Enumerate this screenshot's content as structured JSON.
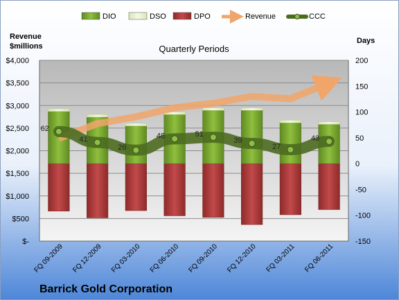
{
  "chart_data": {
    "type": "bar",
    "title": "Quarterly Periods",
    "company": "Barrick Gold Corporation",
    "ylabel_left": [
      "Revenue",
      "$millions"
    ],
    "ylabel_right": "Days",
    "categories": [
      "FQ 09-2009",
      "FQ 12-2009",
      "FQ 03-2010",
      "FQ 06-2010",
      "FQ 09-2010",
      "FQ 12-2010",
      "FQ 03-2011",
      "FQ 06-2011"
    ],
    "left_ticks": [
      "$-",
      "$500",
      "$1,000",
      "$1,500",
      "$2,000",
      "$2,500",
      "$3,000",
      "$3,500",
      "$4,000"
    ],
    "right_ticks": [
      "-150",
      "-100",
      "-50",
      "0",
      "50",
      "100",
      "150",
      "200"
    ],
    "ylim_left": [
      0,
      4000
    ],
    "ylim_right": [
      -150,
      200
    ],
    "series": [
      {
        "name": "DIO",
        "color": "#7aa32e",
        "values": [
          101,
          90,
          73,
          95,
          103,
          103,
          79,
          76
        ]
      },
      {
        "name": "DSO",
        "color": "#e6f0c8",
        "values": [
          5,
          5,
          5,
          5,
          5,
          5,
          5,
          5
        ]
      },
      {
        "name": "DPO",
        "color": "#b03a3a",
        "values": [
          -92,
          -105,
          -91,
          -101,
          -104,
          -118,
          -99,
          -89
        ]
      },
      {
        "name": "Revenue",
        "color": "#f0a66a",
        "values": [
          2270,
          2600,
          2750,
          2950,
          3050,
          3200,
          3150,
          3500
        ]
      },
      {
        "name": "CCC",
        "color": "#4d6b20",
        "values": [
          62,
          41,
          26,
          48,
          51,
          39,
          27,
          43
        ]
      }
    ],
    "ccc_labels": [
      "62",
      "41",
      "26",
      "48",
      "51",
      "39",
      "27",
      "43"
    ],
    "legend_position": "top",
    "grid": true
  }
}
